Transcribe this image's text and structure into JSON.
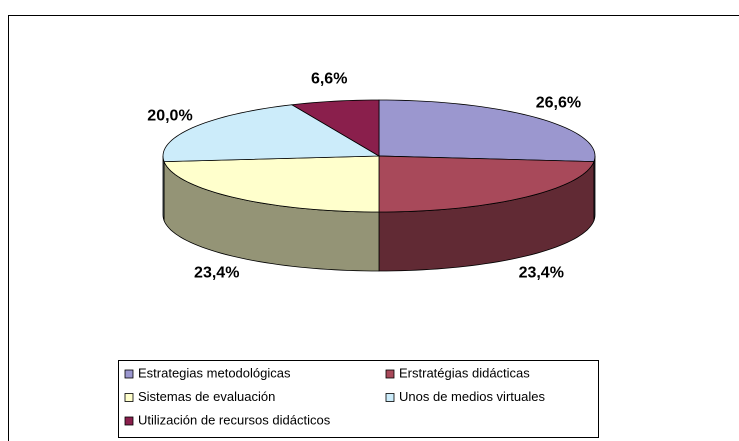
{
  "chart_data": {
    "type": "pie3d",
    "categories": [
      "Estrategias metodológicas",
      "Erstratégias didácticas",
      "Sistemas de evaluación",
      "Unos de medios virtuales",
      "Utilización de recursos didácticos"
    ],
    "values": [
      26.6,
      23.4,
      23.4,
      20.0,
      6.6
    ],
    "value_labels": [
      "26,6%",
      "23,4%",
      "23,4%",
      "20,0%",
      "6,6%"
    ],
    "colors": [
      "#9b97cf",
      "#a8495a",
      "#ffffcc",
      "#ccecfa",
      "#8a1f4c"
    ],
    "legend": "bottom"
  }
}
